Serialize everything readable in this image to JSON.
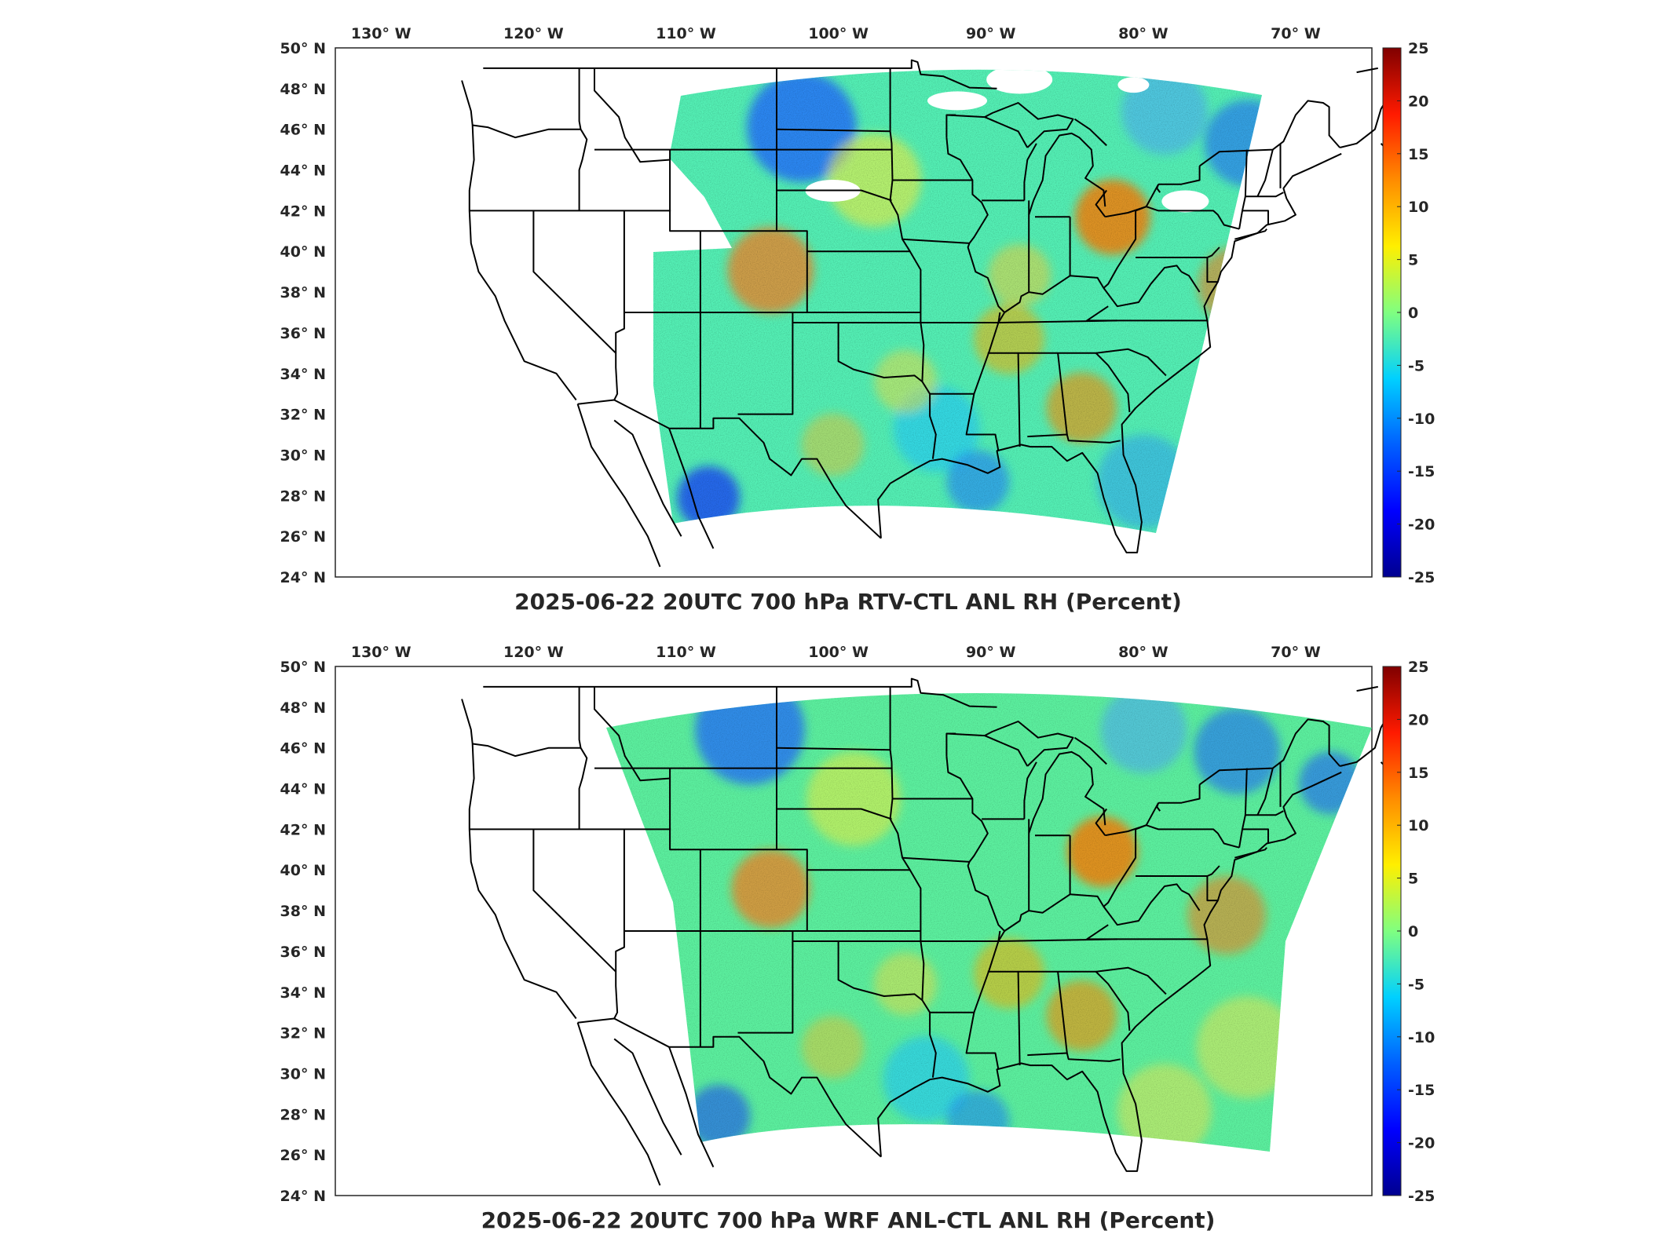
{
  "figure": {
    "panels": [
      {
        "id": "rtv",
        "title": "2025-06-22 20UTC 700 hPa RTV-CTL ANL RH (Percent)",
        "variant": "rtv",
        "lon_ticks": [
          "130° W",
          "120° W",
          "110° W",
          "100° W",
          "90° W",
          "80° W",
          "70° W"
        ],
        "lat_ticks": [
          "50° N",
          "48° N",
          "46° N",
          "44° N",
          "42° N",
          "40° N",
          "38° N",
          "36° N",
          "34° N",
          "32° N",
          "30° N",
          "28° N",
          "26° N",
          "24° N"
        ],
        "colorbar_ticks": [
          "25",
          "20",
          "15",
          "10",
          "5",
          "0",
          "-5",
          "-10",
          "-15",
          "-20",
          "-25"
        ]
      },
      {
        "id": "wrf",
        "title": "2025-06-22 20UTC 700 hPa WRF ANL-CTL ANL RH (Percent)",
        "variant": "wrf",
        "lon_ticks": [
          "130° W",
          "120° W",
          "110° W",
          "100° W",
          "90° W",
          "80° W",
          "70° W"
        ],
        "lat_ticks": [
          "50° N",
          "48° N",
          "46° N",
          "44° N",
          "42° N",
          "40° N",
          "38° N",
          "36° N",
          "34° N",
          "32° N",
          "30° N",
          "28° N",
          "26° N",
          "24° N"
        ],
        "colorbar_ticks": [
          "25",
          "20",
          "15",
          "10",
          "5",
          "0",
          "-5",
          "-10",
          "-15",
          "-20",
          "-25"
        ]
      }
    ],
    "colormap": [
      "#00008f",
      "#0000ff",
      "#0080ff",
      "#00ffff",
      "#80ff80",
      "#ffff00",
      "#ff8000",
      "#ff0000",
      "#800000"
    ],
    "colorbar_range": [
      -25,
      25
    ]
  }
}
